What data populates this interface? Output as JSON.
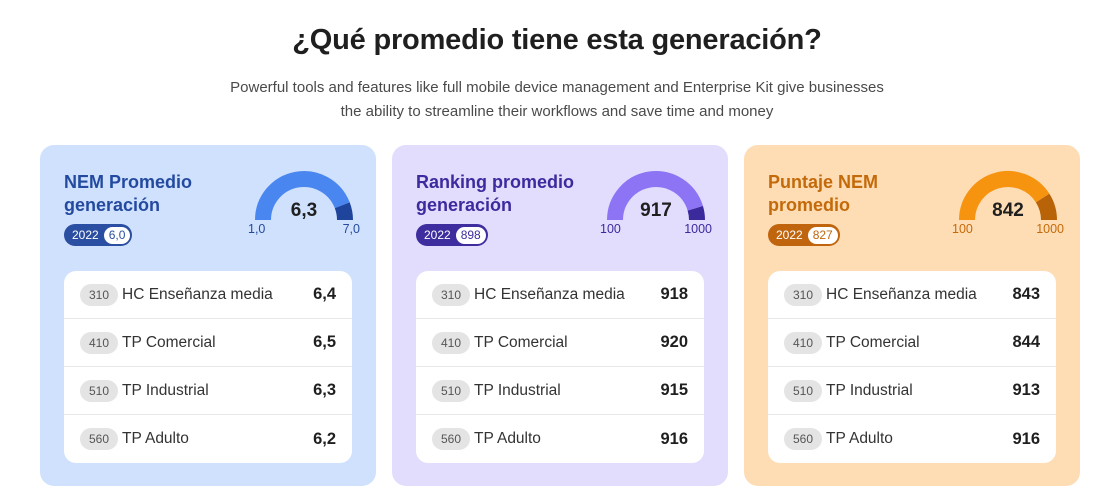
{
  "header": {
    "title": "¿Qué promedio tiene esta generación?",
    "subtitle_line1": "Powerful tools and features like full mobile device management and Enterprise Kit give businesses",
    "subtitle_line2": "the ability to streamline their workflows and save time and money"
  },
  "cards": [
    {
      "title_line1": "NEM Promedio",
      "title_line2": "generación",
      "year": "2022",
      "year_value": "6,0",
      "gauge": {
        "value_label": "6,3",
        "min": "1,0",
        "max": "7,0",
        "fraction": 0.883,
        "main_color": "#4a86f0",
        "accent_color": "#1f449c",
        "track_color": "#b8cff6"
      },
      "rows": [
        {
          "code": "310",
          "label": "HC Enseñanza media",
          "value": "6,4"
        },
        {
          "code": "410",
          "label": "TP Comercial",
          "value": "6,5"
        },
        {
          "code": "510",
          "label": "TP Industrial",
          "value": "6,3"
        },
        {
          "code": "560",
          "label": "TP Adulto",
          "value": "6,2"
        }
      ]
    },
    {
      "title_line1": "Ranking promedio",
      "title_line2": "generación",
      "year": "2022",
      "year_value": "898",
      "gauge": {
        "value_label": "917",
        "min": "100",
        "max": "1000",
        "fraction": 0.908,
        "main_color": "#8d74f5",
        "accent_color": "#3a2a9c",
        "track_color": "#cdc3fa"
      },
      "rows": [
        {
          "code": "310",
          "label": "HC Enseñanza media",
          "value": "918"
        },
        {
          "code": "410",
          "label": "TP Comercial",
          "value": "920"
        },
        {
          "code": "510",
          "label": "TP Industrial",
          "value": "915"
        },
        {
          "code": "560",
          "label": "TP Adulto",
          "value": "916"
        }
      ]
    },
    {
      "title_line1": "Puntaje NEM",
      "title_line2": "promedio",
      "year": "2022",
      "year_value": "827",
      "gauge": {
        "value_label": "842",
        "min": "100",
        "max": "1000",
        "fraction": 0.82,
        "main_color": "#f7940f",
        "accent_color": "#b86308",
        "track_color": "#fbc98a"
      },
      "rows": [
        {
          "code": "310",
          "label": "HC Enseñanza media",
          "value": "843"
        },
        {
          "code": "410",
          "label": "TP Comercial",
          "value": "844"
        },
        {
          "code": "510",
          "label": "TP Industrial",
          "value": "913"
        },
        {
          "code": "560",
          "label": "TP Adulto",
          "value": "916"
        }
      ]
    }
  ]
}
